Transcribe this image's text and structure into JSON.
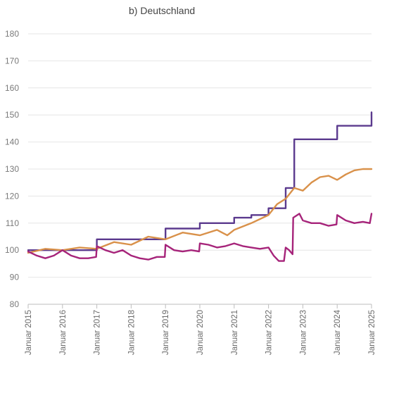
{
  "chart_data": {
    "type": "line",
    "title": "b) Deutschland",
    "xlabel": "",
    "ylabel": "",
    "ylim": [
      80,
      180
    ],
    "yticks": [
      80,
      90,
      100,
      110,
      120,
      130,
      140,
      150,
      160,
      170,
      180
    ],
    "xlim": [
      2015,
      2025
    ],
    "xticks": [
      "Januar 2015",
      "Januar 2016",
      "Januar 2017",
      "Januar 2018",
      "Januar 2019",
      "Januar 2020",
      "Januar 2021",
      "Januar 2022",
      "Januar 2023",
      "Januar 2024",
      "Januar 2025"
    ],
    "grid": true,
    "legend": "none",
    "series": [
      {
        "color": "#5b3a8e",
        "style": "step",
        "x": [
          2015.0,
          2017.0,
          2017.0,
          2019.0,
          2019.0,
          2020.0,
          2020.0,
          2021.0,
          2021.0,
          2021.5,
          2021.5,
          2022.0,
          2022.0,
          2022.5,
          2022.5,
          2022.75,
          2022.75,
          2024.0,
          2024.0,
          2025.0,
          2025.0
        ],
        "values": [
          100,
          100,
          104,
          104,
          108,
          108,
          110,
          110,
          112,
          112,
          113,
          113,
          115.5,
          115.5,
          123,
          123,
          141,
          141,
          146,
          146,
          151
        ]
      },
      {
        "color": "#d9914a",
        "style": "line",
        "x": [
          2015.0,
          2015.5,
          2016.0,
          2016.5,
          2017.0,
          2017.5,
          2018.0,
          2018.5,
          2019.0,
          2019.5,
          2020.0,
          2020.5,
          2020.8,
          2021.0,
          2021.5,
          2022.0,
          2022.25,
          2022.5,
          2022.75,
          2023.0,
          2023.25,
          2023.5,
          2023.75,
          2024.0,
          2024.25,
          2024.5,
          2024.75,
          2025.0
        ],
        "values": [
          99,
          100.5,
          100,
          101,
          100.5,
          103,
          102,
          105,
          104,
          106.5,
          105.5,
          107.5,
          105.5,
          107.5,
          110,
          113,
          117,
          119,
          123,
          122,
          125,
          127,
          127.5,
          126,
          128,
          129.5,
          130,
          130
        ]
      },
      {
        "color": "#a6247a",
        "style": "line",
        "x": [
          2015.0,
          2015.25,
          2015.5,
          2015.75,
          2016.0,
          2016.25,
          2016.5,
          2016.75,
          2016.98,
          2017.0,
          2017.25,
          2017.5,
          2017.75,
          2018.0,
          2018.25,
          2018.5,
          2018.75,
          2018.98,
          2019.0,
          2019.25,
          2019.5,
          2019.75,
          2019.98,
          2020.0,
          2020.25,
          2020.5,
          2020.75,
          2021.0,
          2021.25,
          2021.5,
          2021.75,
          2022.0,
          2022.15,
          2022.3,
          2022.45,
          2022.5,
          2022.6,
          2022.7,
          2022.72,
          2022.9,
          2023.0,
          2023.25,
          2023.5,
          2023.75,
          2023.98,
          2024.0,
          2024.25,
          2024.5,
          2024.75,
          2024.95,
          2025.0
        ],
        "values": [
          99.5,
          98,
          97,
          98,
          100,
          98,
          97,
          97,
          97.5,
          101.5,
          100,
          99,
          100,
          98,
          97,
          96.5,
          97.5,
          97.5,
          102,
          100,
          99.5,
          100,
          99.5,
          102.5,
          102,
          101,
          101.5,
          102.5,
          101.5,
          101,
          100.5,
          101,
          98,
          96,
          96,
          101,
          100,
          98.5,
          112,
          113.5,
          111,
          110,
          110,
          109,
          109.5,
          113,
          111,
          110,
          110.5,
          110,
          113.5
        ]
      }
    ]
  }
}
